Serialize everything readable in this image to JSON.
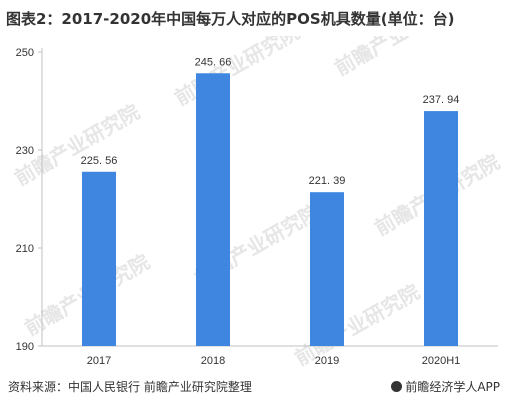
{
  "title": "图表2：2017-2020年中国每万人对应的POS机具数量(单位：台)",
  "footer": {
    "source": "资料来源：中国人民银行  前瞻产业研究院整理",
    "brand": "前瞻经济学人APP"
  },
  "watermark": "前瞻产业研究院",
  "colors": {
    "bar": "#3e86e0",
    "axis": "#c0c0c0"
  },
  "chart_data": {
    "type": "bar",
    "title": "图表2：2017-2020年中国每万人对应的POS机具数量(单位：台)",
    "categories": [
      "2017",
      "2018",
      "2019",
      "2020H1"
    ],
    "values": [
      225.56,
      245.66,
      221.39,
      237.94
    ],
    "data_labels": [
      "225. 56",
      "245. 66",
      "221. 39",
      "237. 94"
    ],
    "ylim": [
      190,
      250
    ],
    "yticks": [
      190,
      210,
      230,
      250
    ],
    "xlabel": "",
    "ylabel": "",
    "grid": false
  }
}
